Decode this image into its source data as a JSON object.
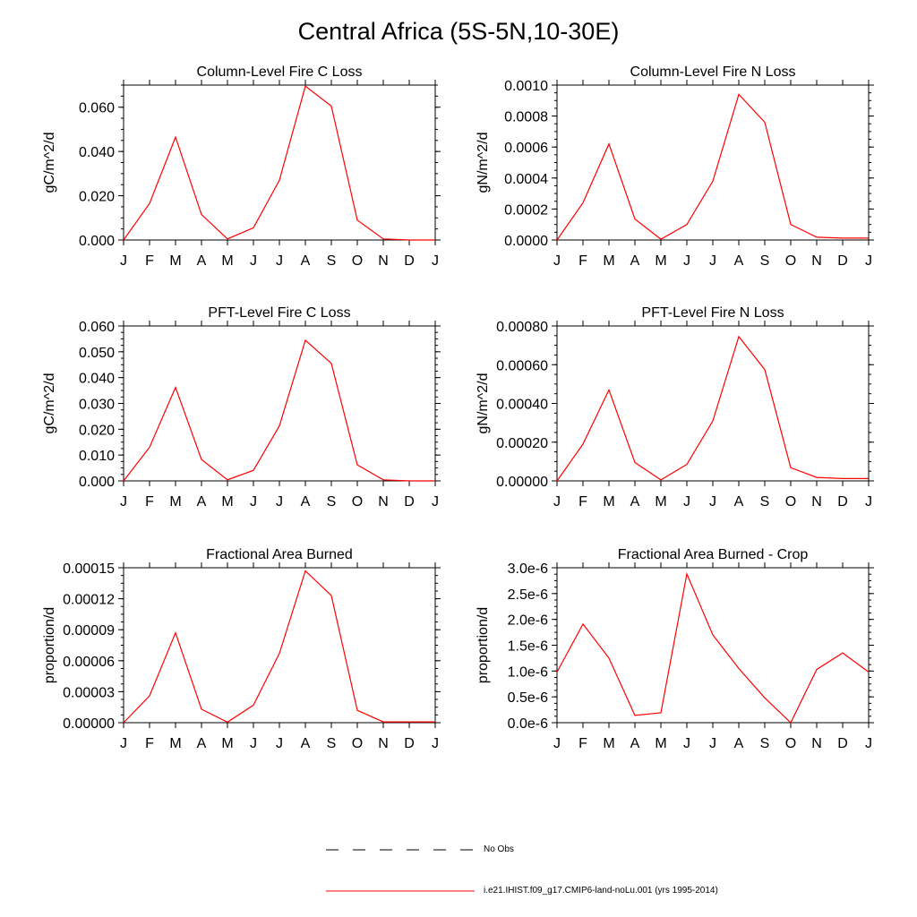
{
  "page": {
    "title": "Central Africa (5S-5N,10-30E)"
  },
  "months": [
    "J",
    "F",
    "M",
    "A",
    "M",
    "J",
    "J",
    "A",
    "S",
    "O",
    "N",
    "D",
    "J"
  ],
  "legend": {
    "obs_label": "No Obs",
    "model_label": "i.e21.IHIST.f09_g17.CMIP6-land-noLu.001 (yrs 1995-2014)",
    "model_color": "#ff0000",
    "obs_color": "#000000"
  },
  "chart_data": [
    {
      "type": "line",
      "title": "Column-Level Fire C Loss",
      "ylabel": "gC/m^2/d",
      "ylim": [
        0,
        0.07
      ],
      "yticks": [
        0,
        0.02,
        0.04,
        0.06
      ],
      "yticklabels": [
        "0.000",
        "0.020",
        "0.040",
        "0.060"
      ],
      "series": [
        {
          "values": [
            0.0,
            0.0165,
            0.0465,
            0.0115,
            0.0005,
            0.0055,
            0.027,
            0.0695,
            0.0605,
            0.009,
            0.0005,
            0.0,
            0.0
          ]
        }
      ]
    },
    {
      "type": "line",
      "title": "Column-Level Fire N Loss",
      "ylabel": "gN/m^2/d",
      "ylim": [
        0,
        0.001
      ],
      "yticks": [
        0,
        0.0002,
        0.0004,
        0.0006,
        0.0008,
        0.001
      ],
      "yticklabels": [
        "0.0000",
        "0.0002",
        "0.0004",
        "0.0006",
        "0.0008",
        "0.0010"
      ],
      "series": [
        {
          "values": [
            0.0,
            0.00024,
            0.00062,
            0.000135,
            5e-06,
            0.0001,
            0.00038,
            0.00094,
            0.00076,
            0.0001,
            1.8e-05,
            1.2e-05,
            1.2e-05
          ]
        }
      ]
    },
    {
      "type": "line",
      "title": "PFT-Level Fire C Loss",
      "ylabel": "gC/m^2/d",
      "ylim": [
        0,
        0.06
      ],
      "yticks": [
        0,
        0.01,
        0.02,
        0.03,
        0.04,
        0.05,
        0.06
      ],
      "yticklabels": [
        "0.000",
        "0.010",
        "0.020",
        "0.030",
        "0.040",
        "0.050",
        "0.060"
      ],
      "series": [
        {
          "values": [
            0.0,
            0.013,
            0.0362,
            0.0083,
            0.0004,
            0.0041,
            0.0213,
            0.0545,
            0.0455,
            0.0062,
            0.0004,
            0.0,
            0.0
          ]
        }
      ]
    },
    {
      "type": "line",
      "title": "PFT-Level Fire N Loss",
      "ylabel": "gN/m^2/d",
      "ylim": [
        0,
        0.0008
      ],
      "yticks": [
        0,
        0.0002,
        0.0004,
        0.0006,
        0.0008
      ],
      "yticklabels": [
        "0.00000",
        "0.00020",
        "0.00040",
        "0.00060",
        "0.00080"
      ],
      "series": [
        {
          "values": [
            0.0,
            0.00019,
            0.00047,
            9.5e-05,
            5e-06,
            8.5e-05,
            0.00031,
            0.000745,
            0.000575,
            6.8e-05,
            1.8e-05,
            1.2e-05,
            1.2e-05
          ]
        }
      ]
    },
    {
      "type": "line",
      "title": "Fractional Area Burned",
      "ylabel": "proportion/d",
      "ylim": [
        0,
        0.00015
      ],
      "yticks": [
        0,
        3e-05,
        6e-05,
        9e-05,
        0.00012,
        0.00015
      ],
      "yticklabels": [
        "0.00000",
        "0.00003",
        "0.00006",
        "0.00009",
        "0.00012",
        "0.00015"
      ],
      "series": [
        {
          "values": [
            0.0,
            2.6e-05,
            8.7e-05,
            1.3e-05,
            5e-07,
            1.7e-05,
            6.7e-05,
            0.000147,
            0.000123,
            1.2e-05,
            8e-07,
            8e-07,
            8e-07
          ]
        }
      ]
    },
    {
      "type": "line",
      "title": "Fractional Area Burned - Crop",
      "ylabel": "proportion/d",
      "ylim": [
        0,
        3e-06
      ],
      "yticks": [
        0,
        5e-07,
        1e-06,
        1.5e-06,
        2e-06,
        2.5e-06,
        3e-06
      ],
      "yticklabels": [
        "0.0e-6",
        "0.5e-6",
        "1.0e-6",
        "1.5e-6",
        "2.0e-6",
        "2.5e-6",
        "3.0e-6"
      ],
      "series": [
        {
          "values": [
            9.8e-07,
            1.91e-06,
            1.25e-06,
            1.4e-07,
            1.9e-07,
            2.88e-06,
            1.7e-06,
            1.05e-06,
            4.8e-07,
            0.0,
            1.03e-06,
            1.35e-06,
            9.8e-07
          ]
        }
      ]
    }
  ]
}
